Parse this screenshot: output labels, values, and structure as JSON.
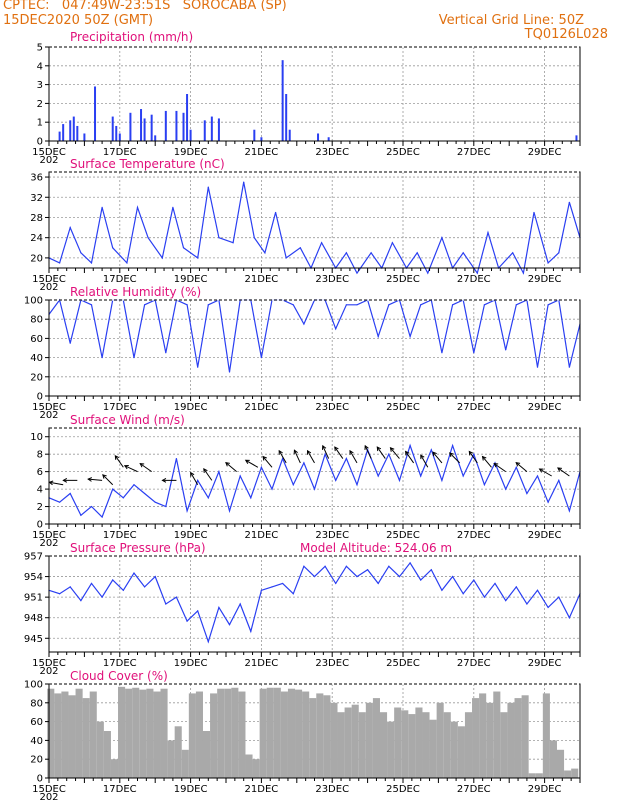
{
  "header": {
    "line1": "CPTEC:   047:49W-23:51S   SOROCABA (SP)",
    "line2": "15DEC2020 50Z (GMT)",
    "grid_note": "Vertical Grid Line: 50Z",
    "code": "TQ0126L028"
  },
  "axis": {
    "day_labels": [
      "15DEC",
      "17DEC",
      "19DEC",
      "21DEC",
      "23DEC",
      "25DEC",
      "27DEC",
      "29DEC"
    ],
    "year_stub": "202",
    "start_day": 15,
    "end_day": 30
  },
  "colors": {
    "series": "#2a3ff2",
    "cloud": "#a9a9a9",
    "title": "#e0107a",
    "header": "#e07010"
  },
  "chart_data": [
    {
      "type": "bar",
      "title": "Precipitation (mm/h)",
      "ylim": [
        0,
        5
      ],
      "yticks": [
        0,
        1,
        2,
        3,
        4,
        5
      ],
      "x": [
        15.3,
        15.4,
        15.6,
        15.7,
        15.8,
        16.0,
        16.3,
        16.8,
        16.9,
        17.0,
        17.3,
        17.6,
        17.7,
        17.9,
        18.0,
        18.3,
        18.6,
        18.8,
        18.9,
        19.0,
        19.4,
        19.6,
        19.8,
        20.8,
        21.0,
        21.6,
        21.7,
        21.8,
        22.6,
        22.9,
        29.9
      ],
      "values": [
        0.5,
        0.9,
        1.1,
        1.3,
        0.8,
        0.4,
        2.9,
        1.3,
        0.8,
        0.4,
        1.5,
        1.7,
        1.2,
        1.4,
        0.3,
        1.6,
        1.6,
        1.5,
        2.5,
        0.6,
        1.1,
        1.3,
        1.2,
        0.6,
        0.2,
        4.3,
        2.5,
        0.6,
        0.4,
        0.2,
        0.3
      ]
    },
    {
      "type": "line",
      "title": "Surface Temperature (nC)",
      "ylim": [
        18,
        37
      ],
      "yticks": [
        20,
        24,
        28,
        32,
        36
      ],
      "x": [
        15.0,
        15.3,
        15.6,
        15.9,
        16.2,
        16.5,
        16.8,
        17.2,
        17.5,
        17.8,
        18.2,
        18.5,
        18.8,
        19.2,
        19.5,
        19.8,
        20.2,
        20.5,
        20.8,
        21.1,
        21.4,
        21.7,
        22.1,
        22.4,
        22.7,
        23.1,
        23.4,
        23.7,
        24.1,
        24.4,
        24.7,
        25.1,
        25.4,
        25.7,
        26.1,
        26.4,
        26.7,
        27.1,
        27.4,
        27.7,
        28.1,
        28.4,
        28.7,
        29.1,
        29.4,
        29.7,
        30.0
      ],
      "values": [
        20,
        19,
        26,
        21,
        19,
        30,
        22,
        19,
        30,
        24,
        20,
        30,
        22,
        20,
        34,
        24,
        23,
        35,
        24,
        21,
        29,
        20,
        22,
        18,
        23,
        18,
        21,
        17,
        21,
        18,
        23,
        18,
        21,
        17,
        24,
        18,
        21,
        17,
        25,
        18,
        21,
        17,
        29,
        19,
        21,
        31,
        24
      ]
    },
    {
      "type": "line",
      "title": "Relative Humidity (%)",
      "ylim": [
        0,
        100
      ],
      "yticks": [
        0,
        20,
        40,
        60,
        80,
        100
      ],
      "x": [
        15.0,
        15.3,
        15.6,
        15.9,
        16.2,
        16.5,
        16.8,
        17.1,
        17.4,
        17.7,
        18.0,
        18.3,
        18.6,
        18.9,
        19.2,
        19.5,
        19.8,
        20.1,
        20.4,
        20.7,
        21.0,
        21.3,
        21.6,
        21.9,
        22.2,
        22.5,
        22.8,
        23.1,
        23.4,
        23.7,
        24.0,
        24.3,
        24.6,
        24.9,
        25.2,
        25.5,
        25.8,
        26.1,
        26.4,
        26.7,
        27.0,
        27.3,
        27.6,
        27.9,
        28.2,
        28.5,
        28.8,
        29.1,
        29.4,
        29.7,
        30.0
      ],
      "values": [
        85,
        100,
        55,
        100,
        95,
        40,
        100,
        100,
        40,
        95,
        100,
        45,
        100,
        95,
        30,
        95,
        100,
        25,
        100,
        100,
        40,
        100,
        100,
        95,
        75,
        100,
        100,
        70,
        95,
        95,
        100,
        62,
        95,
        100,
        62,
        95,
        100,
        45,
        95,
        100,
        45,
        95,
        100,
        48,
        95,
        100,
        30,
        95,
        100,
        30,
        75
      ]
    },
    {
      "type": "line",
      "title": "Surface Wind (m/s)",
      "ylim": [
        0,
        11
      ],
      "yticks": [
        0,
        2,
        4,
        6,
        8,
        10
      ],
      "x": [
        15.0,
        15.3,
        15.6,
        15.9,
        16.2,
        16.5,
        16.8,
        17.1,
        17.4,
        17.7,
        18.0,
        18.3,
        18.6,
        18.9,
        19.2,
        19.5,
        19.8,
        20.1,
        20.4,
        20.7,
        21.0,
        21.3,
        21.6,
        21.9,
        22.2,
        22.5,
        22.8,
        23.1,
        23.4,
        23.7,
        24.0,
        24.3,
        24.6,
        24.9,
        25.2,
        25.5,
        25.8,
        26.1,
        26.4,
        26.7,
        27.0,
        27.3,
        27.6,
        27.9,
        28.2,
        28.5,
        28.8,
        29.1,
        29.4,
        29.7,
        30.0
      ],
      "values": [
        3.0,
        2.5,
        3.5,
        1.0,
        2.0,
        0.8,
        4.0,
        3.0,
        4.5,
        3.5,
        2.5,
        2.0,
        7.5,
        1.5,
        5.0,
        3.0,
        6.0,
        1.5,
        5.5,
        3.0,
        6.5,
        4.0,
        7.5,
        4.5,
        7.0,
        4.0,
        8.0,
        5.0,
        7.5,
        4.5,
        8.5,
        5.5,
        8.0,
        5.0,
        9.0,
        5.5,
        8.5,
        5.0,
        9.0,
        5.5,
        8.0,
        4.5,
        7.0,
        4.0,
        6.5,
        3.5,
        5.5,
        2.5,
        5.0,
        1.5,
        6.0
      ],
      "barbs": [
        {
          "x": 15.4,
          "v": 4.5,
          "dir": 170
        },
        {
          "x": 15.8,
          "v": 5.0,
          "dir": 180
        },
        {
          "x": 16.5,
          "v": 5.0,
          "dir": 175
        },
        {
          "x": 16.8,
          "v": 4.5,
          "dir": 135
        },
        {
          "x": 17.1,
          "v": 6.5,
          "dir": 125
        },
        {
          "x": 17.5,
          "v": 6.0,
          "dir": 155
        },
        {
          "x": 17.9,
          "v": 6.0,
          "dir": 145
        },
        {
          "x": 18.6,
          "v": 5.0,
          "dir": 180
        },
        {
          "x": 19.2,
          "v": 4.5,
          "dir": 120
        },
        {
          "x": 19.6,
          "v": 5.0,
          "dir": 125
        },
        {
          "x": 20.3,
          "v": 6.0,
          "dir": 140
        },
        {
          "x": 20.9,
          "v": 6.5,
          "dir": 150
        },
        {
          "x": 21.3,
          "v": 6.5,
          "dir": 130
        },
        {
          "x": 21.7,
          "v": 7.0,
          "dir": 120
        },
        {
          "x": 22.1,
          "v": 7.0,
          "dir": 115
        },
        {
          "x": 22.5,
          "v": 7.0,
          "dir": 120
        },
        {
          "x": 22.9,
          "v": 7.5,
          "dir": 115
        },
        {
          "x": 23.3,
          "v": 7.5,
          "dir": 125
        },
        {
          "x": 23.7,
          "v": 7.0,
          "dir": 120
        },
        {
          "x": 24.1,
          "v": 7.5,
          "dir": 115
        },
        {
          "x": 24.5,
          "v": 7.5,
          "dir": 125
        },
        {
          "x": 24.9,
          "v": 7.5,
          "dir": 130
        },
        {
          "x": 25.3,
          "v": 7.0,
          "dir": 125
        },
        {
          "x": 25.7,
          "v": 6.5,
          "dir": 120
        },
        {
          "x": 26.1,
          "v": 7.0,
          "dir": 130
        },
        {
          "x": 26.6,
          "v": 7.0,
          "dir": 135
        },
        {
          "x": 27.1,
          "v": 7.0,
          "dir": 125
        },
        {
          "x": 27.5,
          "v": 6.5,
          "dir": 130
        },
        {
          "x": 27.9,
          "v": 6.0,
          "dir": 145
        },
        {
          "x": 28.5,
          "v": 6.0,
          "dir": 140
        },
        {
          "x": 29.2,
          "v": 5.5,
          "dir": 150
        },
        {
          "x": 29.7,
          "v": 5.5,
          "dir": 145
        }
      ]
    },
    {
      "type": "line",
      "title": "Surface Pressure (hPa)",
      "annotation": "Model Altitude: 524.06 m",
      "ylim": [
        943,
        957
      ],
      "yticks": [
        945,
        948,
        951,
        954,
        957
      ],
      "x": [
        15.0,
        15.3,
        15.6,
        15.9,
        16.2,
        16.5,
        16.8,
        17.1,
        17.4,
        17.7,
        18.0,
        18.3,
        18.6,
        18.9,
        19.2,
        19.5,
        19.8,
        20.1,
        20.4,
        20.7,
        21.0,
        21.3,
        21.6,
        21.9,
        22.2,
        22.5,
        22.8,
        23.1,
        23.4,
        23.7,
        24.0,
        24.3,
        24.6,
        24.9,
        25.2,
        25.5,
        25.8,
        26.1,
        26.4,
        26.7,
        27.0,
        27.3,
        27.6,
        27.9,
        28.2,
        28.5,
        28.8,
        29.1,
        29.4,
        29.7,
        30.0
      ],
      "values": [
        952.0,
        951.5,
        952.5,
        950.5,
        953.0,
        951.0,
        953.5,
        952.0,
        954.5,
        952.5,
        954.0,
        950.0,
        951.0,
        947.5,
        949.0,
        944.5,
        949.5,
        947.0,
        950.0,
        946.0,
        952.0,
        952.5,
        953.0,
        951.5,
        955.5,
        954.0,
        955.5,
        953.0,
        955.5,
        954.0,
        955.0,
        953.0,
        955.5,
        954.0,
        956.0,
        953.5,
        955.0,
        952.0,
        954.0,
        951.5,
        953.5,
        951.0,
        953.0,
        950.5,
        952.5,
        950.0,
        952.0,
        949.5,
        951.0,
        948.0,
        951.5
      ]
    },
    {
      "type": "area",
      "title": "Cloud Cover (%)",
      "ylim": [
        0,
        100
      ],
      "yticks": [
        0,
        20,
        40,
        60,
        80,
        100
      ],
      "x": [
        15.05,
        15.25,
        15.45,
        15.65,
        15.85,
        16.05,
        16.25,
        16.45,
        16.65,
        16.85,
        17.05,
        17.25,
        17.45,
        17.65,
        17.85,
        18.05,
        18.25,
        18.45,
        18.65,
        18.85,
        19.05,
        19.25,
        19.45,
        19.65,
        19.85,
        20.05,
        20.25,
        20.45,
        20.65,
        20.85,
        21.05,
        21.25,
        21.45,
        21.65,
        21.85,
        22.05,
        22.25,
        22.45,
        22.65,
        22.85,
        23.05,
        23.25,
        23.45,
        23.65,
        23.85,
        24.05,
        24.25,
        24.45,
        24.65,
        24.85,
        25.05,
        25.25,
        25.45,
        25.65,
        25.85,
        26.05,
        26.25,
        26.45,
        26.65,
        26.85,
        27.05,
        27.25,
        27.45,
        27.65,
        27.85,
        28.05,
        28.25,
        28.45,
        28.65,
        28.85,
        29.05,
        29.25,
        29.45,
        29.65,
        29.85
      ],
      "values": [
        95,
        90,
        92,
        88,
        95,
        85,
        92,
        60,
        50,
        20,
        97,
        95,
        96,
        94,
        95,
        92,
        95,
        40,
        55,
        30,
        90,
        92,
        50,
        90,
        95,
        95,
        96,
        92,
        25,
        20,
        95,
        96,
        96,
        92,
        95,
        94,
        92,
        85,
        90,
        88,
        80,
        70,
        75,
        78,
        70,
        80,
        85,
        70,
        60,
        75,
        72,
        68,
        75,
        70,
        62,
        80,
        70,
        60,
        55,
        70,
        85,
        90,
        80,
        92,
        70,
        80,
        85,
        88,
        5,
        5,
        90,
        40,
        30,
        8,
        10
      ]
    }
  ]
}
